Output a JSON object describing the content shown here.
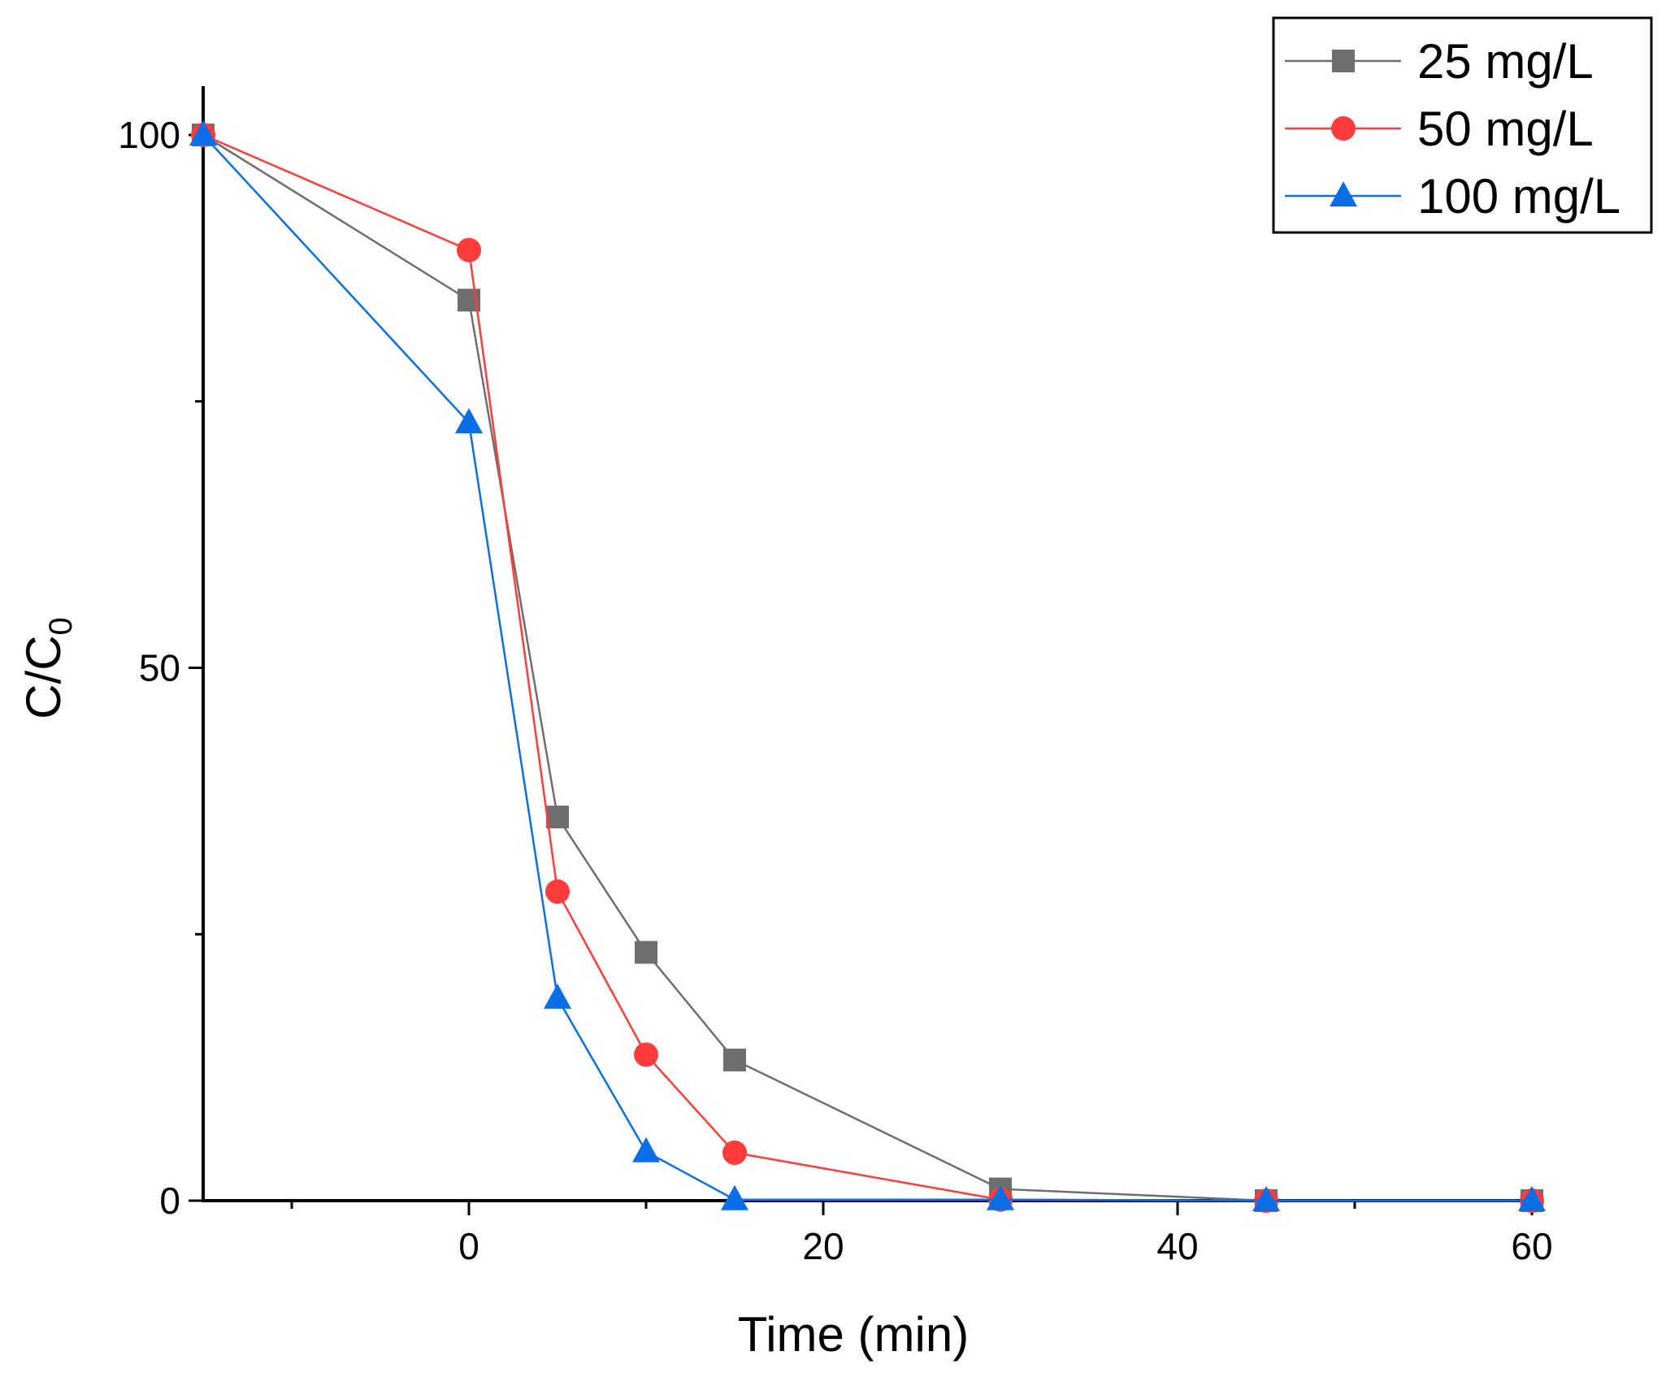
{
  "chart_data": {
    "type": "line",
    "title": "",
    "xlabel": "Time (min)",
    "ylabel": {
      "main": "C/C",
      "subscript": "0"
    },
    "xlim": [
      -15,
      60
    ],
    "ylim": [
      0,
      100
    ],
    "x_ticks": [
      0,
      20,
      40,
      60
    ],
    "x_minor_ticks": [
      -10,
      10,
      30,
      50
    ],
    "y_ticks": [
      0,
      50,
      100
    ],
    "y_minor_ticks": [
      25,
      75
    ],
    "grid": false,
    "legend_position": "top-right",
    "x": [
      -15,
      0,
      5,
      10,
      15,
      30,
      45,
      60
    ],
    "series": [
      {
        "name": "25 mg/L",
        "color": "#6e6e6e",
        "marker": "square",
        "values": [
          100,
          84.5,
          36,
          23.3,
          13.2,
          1.1,
          0,
          0
        ]
      },
      {
        "name": "50 mg/L",
        "color": "#ff3b3b",
        "marker": "circle",
        "values": [
          100,
          89.2,
          29,
          13.7,
          4.5,
          0.1,
          0,
          0
        ]
      },
      {
        "name": "100 mg/L",
        "color": "#0a6ee6",
        "marker": "triangle",
        "values": [
          100,
          73,
          19,
          4.6,
          0.1,
          0.1,
          0,
          0
        ]
      }
    ]
  }
}
